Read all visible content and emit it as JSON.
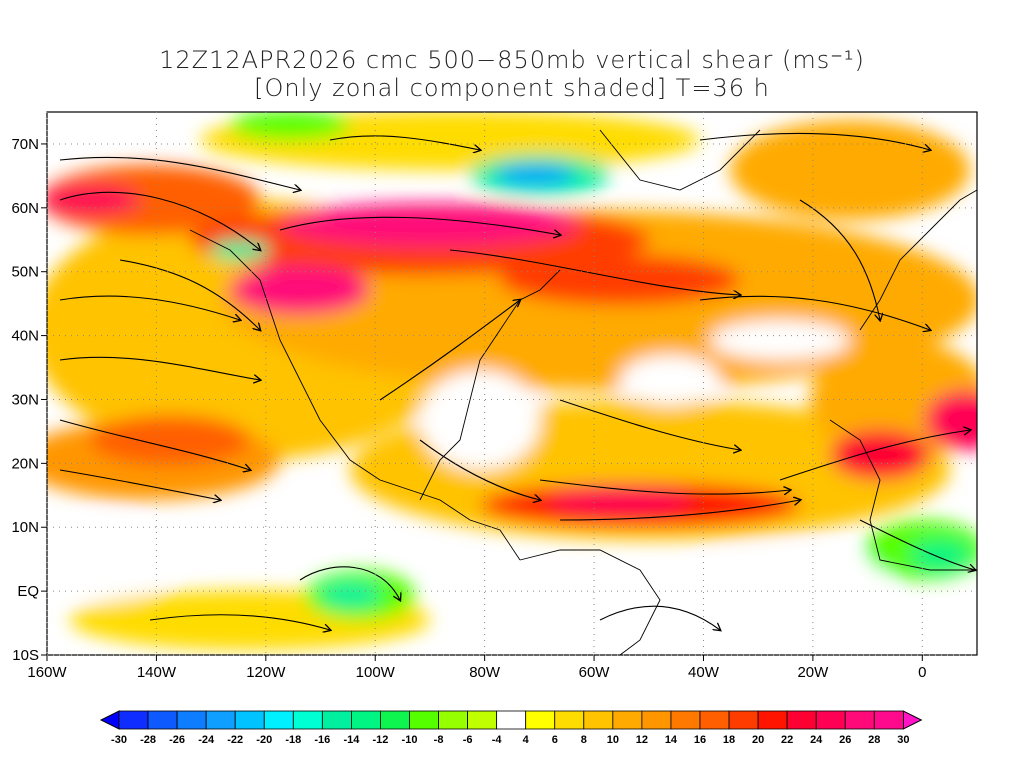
{
  "title": {
    "line1": "12Z12APR2026 cmc 500−850mb vertical shear (ms⁻¹)",
    "line2": "[Only zonal component shaded] T=36 h"
  },
  "axes": {
    "lon_labels": [
      "160W",
      "140W",
      "120W",
      "100W",
      "80W",
      "60W",
      "40W",
      "20W",
      "0"
    ],
    "lon_values": [
      -160,
      -140,
      -120,
      -100,
      -80,
      -60,
      -40,
      -20,
      0
    ],
    "lat_labels": [
      "70N",
      "60N",
      "50N",
      "40N",
      "30N",
      "20N",
      "10N",
      "EQ",
      "10S"
    ],
    "lat_values": [
      70,
      60,
      50,
      40,
      30,
      20,
      10,
      0,
      -10
    ],
    "lon_range": [
      -160,
      10
    ],
    "lat_range": [
      -10,
      75
    ]
  },
  "colorbar": {
    "labels": [
      "-30",
      "-28",
      "-26",
      "-24",
      "-22",
      "-20",
      "-18",
      "-16",
      "-14",
      "-12",
      "-10",
      "-8",
      "-6",
      "-4",
      "4",
      "6",
      "8",
      "10",
      "12",
      "14",
      "16",
      "18",
      "20",
      "22",
      "24",
      "26",
      "28",
      "30"
    ],
    "colors": [
      "#0f2dff",
      "#0f5aff",
      "#0f7dff",
      "#0fa0ff",
      "#00c3ff",
      "#00f0ff",
      "#00ffd2",
      "#00f0a0",
      "#00f582",
      "#0ff550",
      "#55ff00",
      "#96ff00",
      "#bfff00",
      "#ffffff",
      "#ffff00",
      "#ffdc00",
      "#ffc300",
      "#ffaa00",
      "#ff9600",
      "#ff7800",
      "#ff5f00",
      "#ff3c00",
      "#ff1400",
      "#ff0032",
      "#ff0055",
      "#ff0a78",
      "#ff0a8c"
    ],
    "low_arrow_color": "#0000ff",
    "high_arrow_color": "#ff14c8"
  }
}
